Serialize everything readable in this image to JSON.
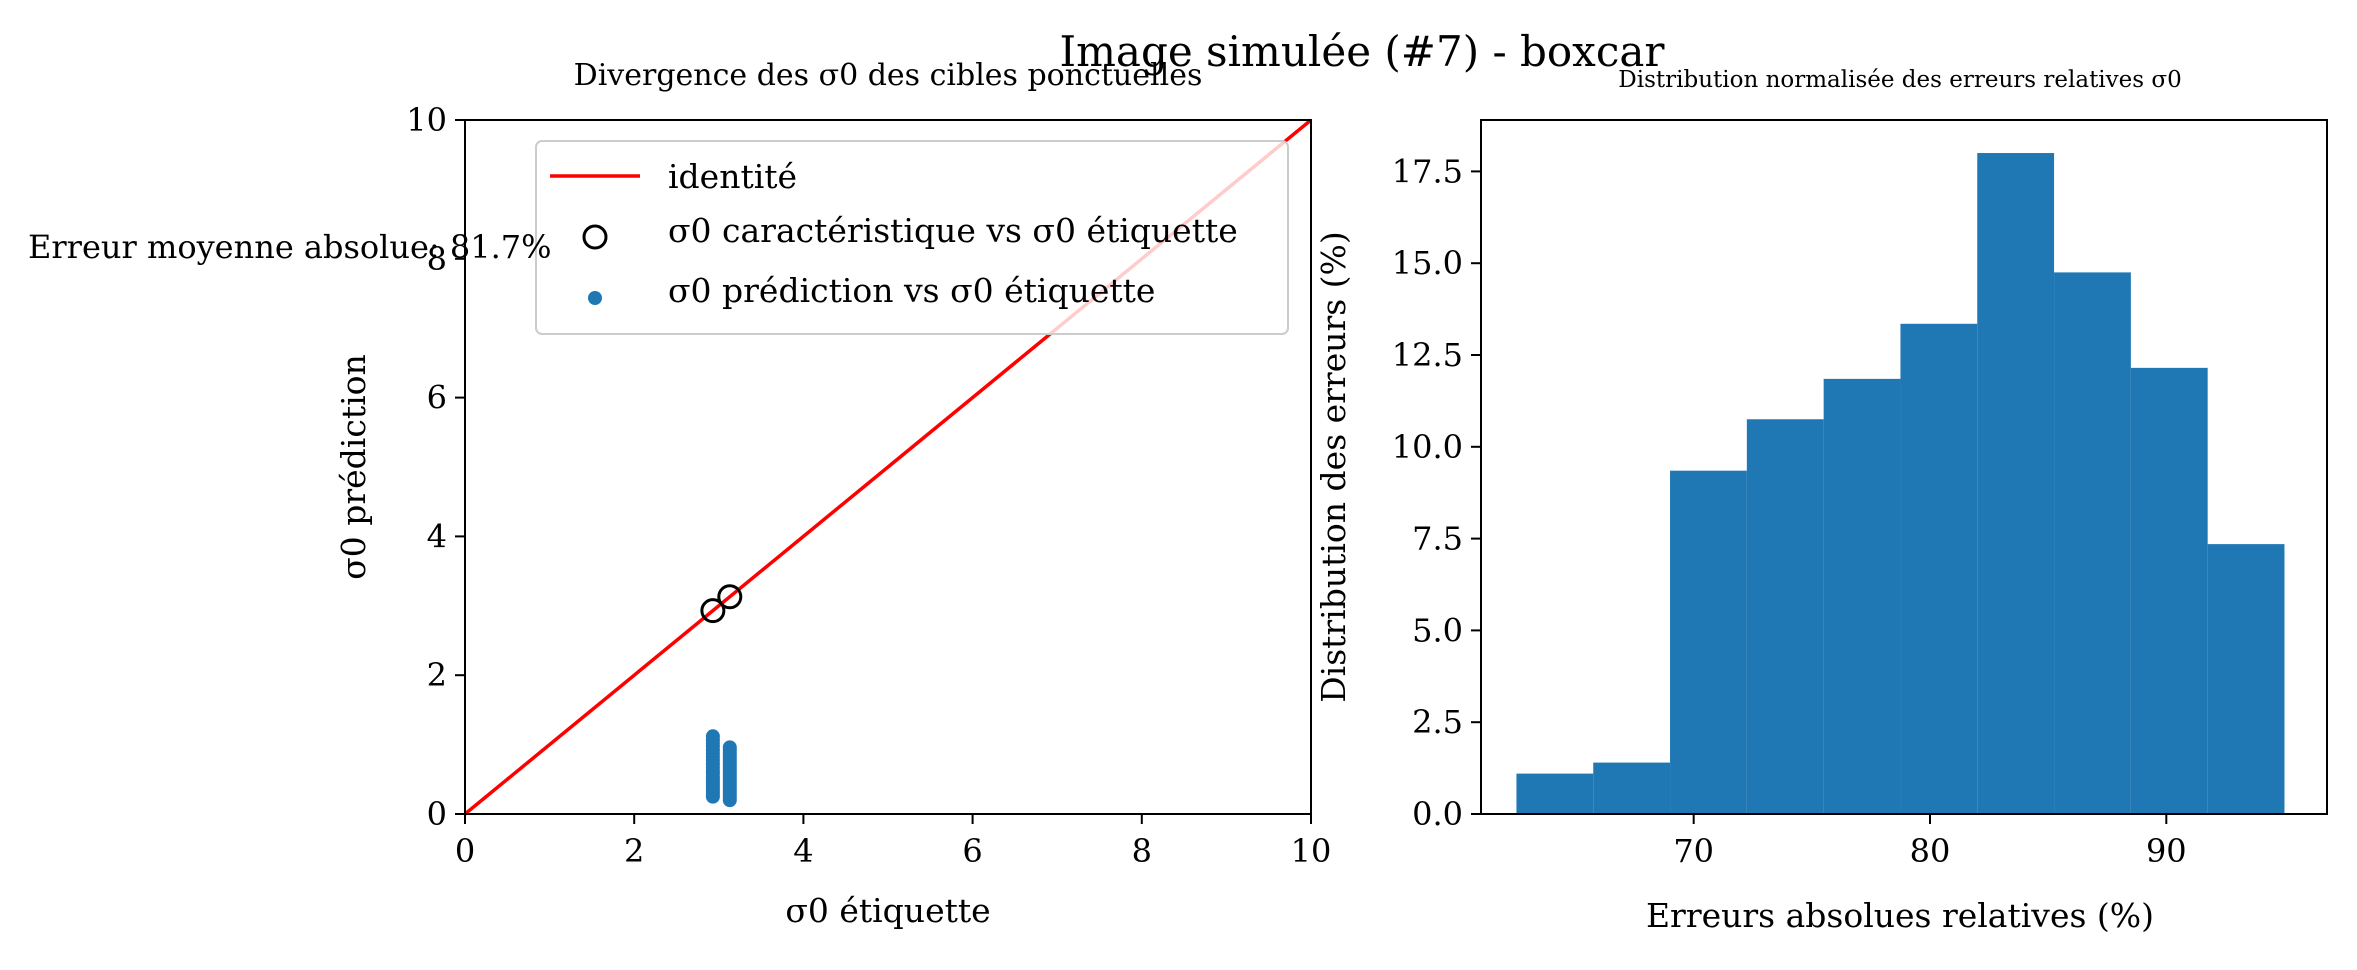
{
  "figure": {
    "suptitle": "Image simulée (#7) - boxcar",
    "annotation": "Erreur moyenne absolue: 81.7%"
  },
  "colors": {
    "identity_line": "#ff0000",
    "prediction_points": "#1f77b4",
    "characteristic_marker": "#000000",
    "histogram_bars": "#1f77b4",
    "axes": "#000000"
  },
  "chart_data": [
    {
      "type": "scatter",
      "title": "Divergence des σ0 des cibles ponctuelles",
      "xlabel": "σ0 étiquette",
      "ylabel": "σ0 prédiction",
      "xlim": [
        0,
        10
      ],
      "ylim": [
        0,
        10
      ],
      "xticks": [
        "0",
        "2",
        "4",
        "6",
        "8",
        "10"
      ],
      "yticks": [
        "0",
        "2",
        "4",
        "6",
        "8",
        "10"
      ],
      "grid": false,
      "legend_position": "upper right",
      "series": [
        {
          "name": "identité",
          "kind": "line",
          "x": [
            0,
            10
          ],
          "y": [
            0,
            10
          ]
        },
        {
          "name": "σ0 caractéristique vs σ0 étiquette",
          "kind": "hollow-circle",
          "x": [
            2.93,
            3.13
          ],
          "y": [
            2.93,
            3.13
          ]
        },
        {
          "name": "σ0 prédiction vs σ0 étiquette",
          "kind": "dot",
          "x": [
            2.93,
            2.93,
            2.93,
            2.93,
            2.93,
            2.93,
            2.93,
            2.93,
            2.93,
            2.93,
            2.93,
            2.93,
            2.93,
            2.93,
            2.93,
            2.93,
            2.93,
            2.93,
            2.93,
            2.93,
            3.13,
            3.13,
            3.13,
            3.13,
            3.13,
            3.13,
            3.13,
            3.13,
            3.13,
            3.13,
            3.13,
            3.13,
            3.13,
            3.13,
            3.13,
            3.13,
            3.13,
            3.13,
            3.13,
            3.13
          ],
          "y": [
            0.25,
            0.29,
            0.33,
            0.37,
            0.41,
            0.45,
            0.49,
            0.53,
            0.58,
            0.62,
            0.67,
            0.72,
            0.77,
            0.82,
            0.87,
            0.92,
            0.97,
            1.02,
            1.07,
            1.12,
            0.2,
            0.24,
            0.28,
            0.32,
            0.36,
            0.4,
            0.44,
            0.48,
            0.52,
            0.56,
            0.6,
            0.64,
            0.68,
            0.72,
            0.76,
            0.8,
            0.84,
            0.88,
            0.92,
            0.96
          ]
        }
      ]
    },
    {
      "type": "bar",
      "title": "Distribution normalisée des erreurs relatives σ0",
      "xlabel": "Erreurs absolues relatives (%)",
      "ylabel": "Distribution des erreurs (%)",
      "xlim": [
        61,
        96.8
      ],
      "ylim": [
        0,
        18.9
      ],
      "xticks": [
        "70",
        "80",
        "90"
      ],
      "yticks": [
        "0.0",
        "2.5",
        "5.0",
        "7.5",
        "10.0",
        "12.5",
        "15.0",
        "17.5"
      ],
      "grid": false,
      "bin_edges": [
        62.5,
        65.75,
        69.0,
        72.25,
        75.5,
        78.75,
        82.0,
        85.25,
        88.5,
        91.75,
        95.0
      ],
      "values": [
        1.1,
        1.4,
        9.35,
        10.75,
        11.85,
        13.35,
        18.0,
        14.75,
        12.15,
        7.35
      ]
    }
  ]
}
